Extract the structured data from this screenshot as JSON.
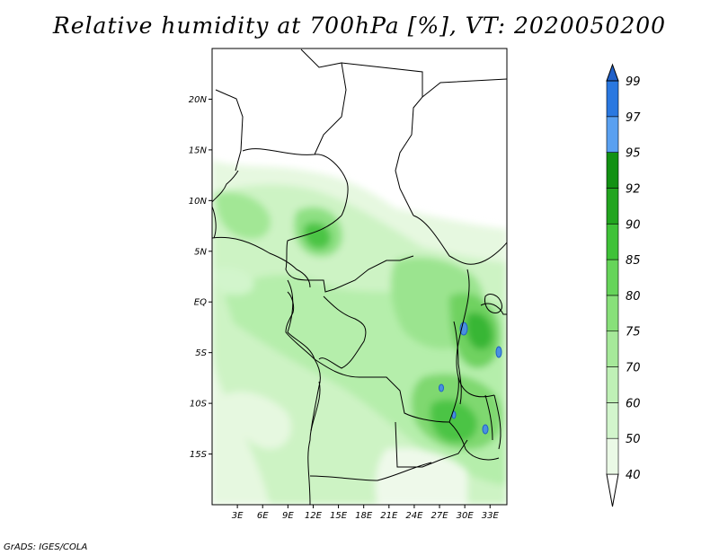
{
  "title": "Relative humidity at 700hPa [%], VT: 2020050200",
  "credit": "GrADS: IGES/COLA",
  "map": {
    "lat_labels": [
      {
        "label": "20N",
        "lat": 20
      },
      {
        "label": "15N",
        "lat": 15
      },
      {
        "label": "10N",
        "lat": 10
      },
      {
        "label": "5N",
        "lat": 5
      },
      {
        "label": "EQ",
        "lat": 0
      },
      {
        "label": "5S",
        "lat": -5
      },
      {
        "label": "10S",
        "lat": -10
      },
      {
        "label": "15S",
        "lat": -15
      }
    ],
    "lon_labels": [
      {
        "label": "3E",
        "lon": 3
      },
      {
        "label": "6E",
        "lon": 6
      },
      {
        "label": "9E",
        "lon": 9
      },
      {
        "label": "12E",
        "lon": 12
      },
      {
        "label": "15E",
        "lon": 15
      },
      {
        "label": "18E",
        "lon": 18
      },
      {
        "label": "21E",
        "lon": 21
      },
      {
        "label": "24E",
        "lon": 24
      },
      {
        "label": "27E",
        "lon": 27
      },
      {
        "label": "30E",
        "lon": 30
      },
      {
        "label": "33E",
        "lon": 33
      }
    ],
    "lon_range": [
      0,
      35
    ],
    "lat_range": [
      -20,
      25
    ]
  },
  "legend": {
    "levels": [
      "40",
      "50",
      "60",
      "70",
      "75",
      "80",
      "85",
      "90",
      "92",
      "95",
      "97",
      "99"
    ],
    "colors": [
      "#ffffff",
      "#eaf9e6",
      "#d2f5cc",
      "#bff0b6",
      "#a6e99a",
      "#88e07a",
      "#66d45a",
      "#3fc238",
      "#22a51f",
      "#129113",
      "#5aa0f0",
      "#2a78e0",
      "#2060c8"
    ]
  }
}
